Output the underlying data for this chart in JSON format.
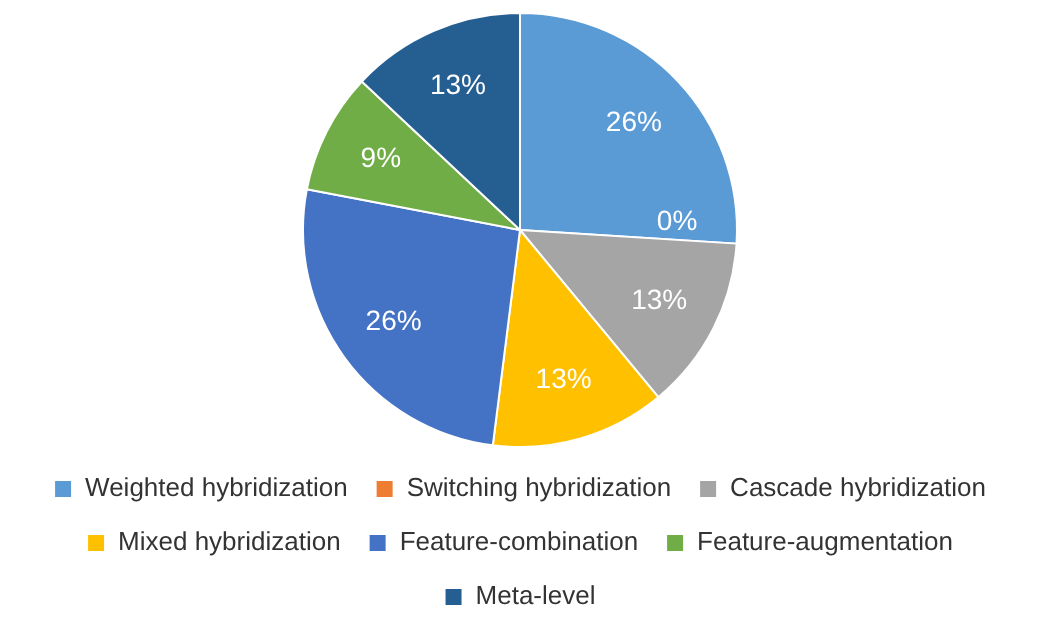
{
  "chart_data": {
    "type": "pie",
    "categories": [
      "Weighted hybridization",
      "Switching hybridization",
      "Cascade hybridization",
      "Mixed hybridization",
      "Feature-combination",
      "Feature-augmentation",
      "Meta-level"
    ],
    "values": [
      26,
      0,
      13,
      13,
      26,
      9,
      13
    ],
    "value_labels": [
      "26%",
      "0%",
      "13%",
      "13%",
      "26%",
      "9%",
      "13%"
    ],
    "colors": [
      "#5b9bd5",
      "#ed7d31",
      "#a5a5a5",
      "#ffc000",
      "#4472c4",
      "#70ad47",
      "#255e91"
    ],
    "legend": "bottom"
  }
}
